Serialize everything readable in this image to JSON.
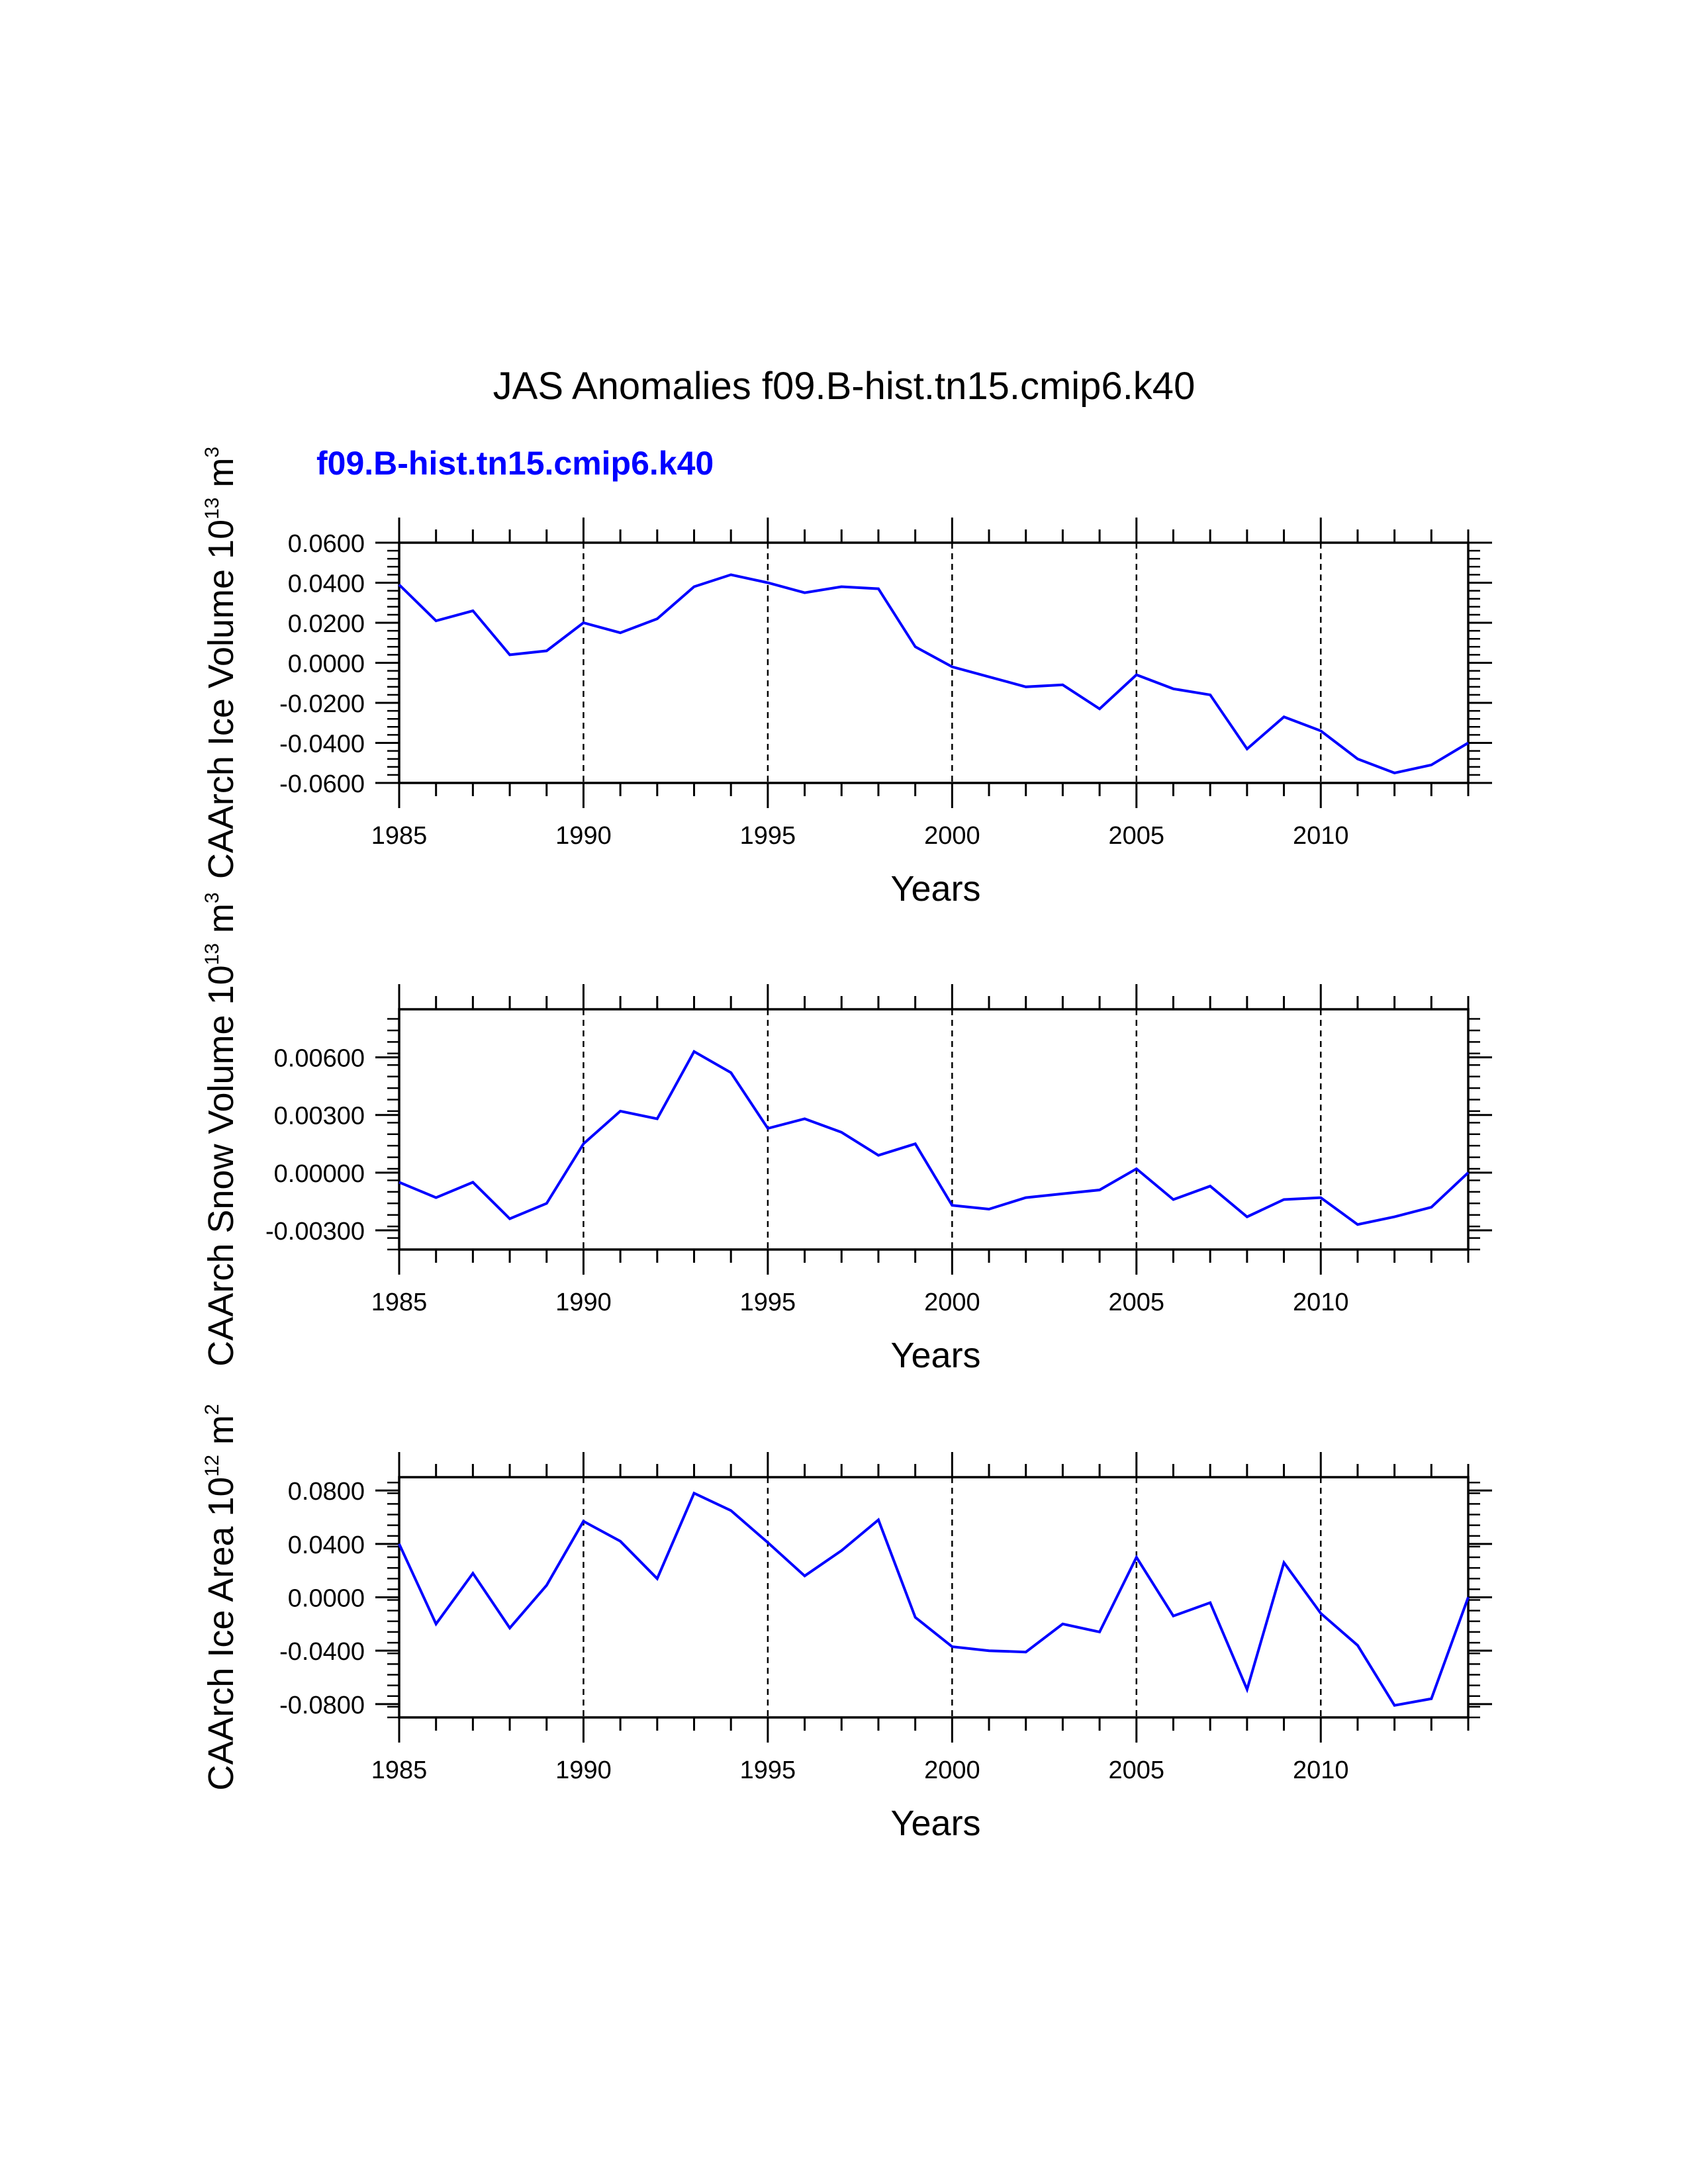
{
  "page": {
    "title": "JAS Anomalies f09.B-hist.tn15.cmip6.k40"
  },
  "legend": {
    "label": "f09.B-hist.tn15.cmip6.k40",
    "color": "#0000ff"
  },
  "colors": {
    "series": "#0000ff",
    "axis": "#000000",
    "grid": "#000000"
  },
  "chart_data": [
    {
      "type": "line",
      "title": "JAS Anomalies f09.B-hist.tn15.cmip6.k40",
      "xlabel": "Years",
      "ylabel": {
        "text": "CAArch Ice Volume 10",
        "exp": "13",
        "unit": " m",
        "unit_exp": "3"
      },
      "xlim": [
        1985,
        2014
      ],
      "ylim": [
        -0.06,
        0.06
      ],
      "xticks": [
        1985,
        1990,
        1995,
        2000,
        2005,
        2010
      ],
      "xtick_labels": [
        "1985",
        "1990",
        "1995",
        "2000",
        "2005",
        "2010"
      ],
      "yticks": [
        -0.06,
        -0.04,
        -0.02,
        0.0,
        0.02,
        0.04,
        0.06
      ],
      "ytick_labels": [
        "-0.0600",
        "-0.0400",
        "-0.0200",
        "0.0000",
        "0.0200",
        "0.0400",
        "0.0600"
      ],
      "grid_x": [
        1990,
        1995,
        2000,
        2005,
        2010
      ],
      "series": [
        {
          "name": "f09.B-hist.tn15.cmip6.k40",
          "x": [
            1985,
            1986,
            1987,
            1988,
            1989,
            1990,
            1991,
            1992,
            1993,
            1994,
            1995,
            1996,
            1997,
            1998,
            1999,
            2000,
            2001,
            2002,
            2003,
            2004,
            2005,
            2006,
            2007,
            2008,
            2009,
            2010,
            2011,
            2012,
            2013,
            2014
          ],
          "values": [
            0.039,
            0.021,
            0.026,
            0.004,
            0.006,
            0.02,
            0.015,
            0.022,
            0.038,
            0.044,
            0.04,
            0.035,
            0.038,
            0.037,
            0.008,
            -0.002,
            -0.007,
            -0.012,
            -0.011,
            -0.023,
            -0.006,
            -0.013,
            -0.016,
            -0.043,
            -0.027,
            -0.034,
            -0.048,
            -0.055,
            -0.051,
            -0.04
          ]
        }
      ]
    },
    {
      "type": "line",
      "xlabel": "Years",
      "ylabel": {
        "text": "CAArch Snow Volume 10",
        "exp": "13",
        "unit": " m",
        "unit_exp": "3"
      },
      "xlim": [
        1985,
        2014
      ],
      "ylim": [
        -0.004,
        0.0085
      ],
      "xticks": [
        1985,
        1990,
        1995,
        2000,
        2005,
        2010
      ],
      "xtick_labels": [
        "1985",
        "1990",
        "1995",
        "2000",
        "2005",
        "2010"
      ],
      "yticks": [
        -0.003,
        0.0,
        0.003,
        0.006
      ],
      "ytick_labels": [
        "-0.00300",
        "0.00000",
        "0.00300",
        "0.00600"
      ],
      "grid_x": [
        1990,
        1995,
        2000,
        2005,
        2010
      ],
      "series": [
        {
          "name": "f09.B-hist.tn15.cmip6.k40",
          "x": [
            1985,
            1986,
            1987,
            1988,
            1989,
            1990,
            1991,
            1992,
            1993,
            1994,
            1995,
            1996,
            1997,
            1998,
            1999,
            2000,
            2001,
            2002,
            2003,
            2004,
            2005,
            2006,
            2007,
            2008,
            2009,
            2010,
            2011,
            2012,
            2013,
            2014
          ],
          "values": [
            -0.0005,
            -0.0013,
            -0.0005,
            -0.0024,
            -0.0016,
            0.0015,
            0.0032,
            0.0028,
            0.0063,
            0.0052,
            0.0023,
            0.0028,
            0.0021,
            0.0009,
            0.0015,
            -0.0017,
            -0.0019,
            -0.0013,
            -0.0011,
            -0.0009,
            0.0002,
            -0.0014,
            -0.0007,
            -0.0023,
            -0.0014,
            -0.0013,
            -0.0027,
            -0.0023,
            -0.0018,
            0.0
          ]
        }
      ]
    },
    {
      "type": "line",
      "xlabel": "Years",
      "ylabel": {
        "text": "CAArch Ice Area 10",
        "exp": "12",
        "unit": " m",
        "unit_exp": "2"
      },
      "xlim": [
        1985,
        2014
      ],
      "ylim": [
        -0.09,
        0.09
      ],
      "xticks": [
        1985,
        1990,
        1995,
        2000,
        2005,
        2010
      ],
      "xtick_labels": [
        "1985",
        "1990",
        "1995",
        "2000",
        "2005",
        "2010"
      ],
      "yticks": [
        -0.08,
        -0.04,
        0.0,
        0.04,
        0.08
      ],
      "ytick_labels": [
        "-0.0800",
        "-0.0400",
        "0.0000",
        "0.0400",
        "0.0800"
      ],
      "grid_x": [
        1990,
        1995,
        2000,
        2005,
        2010
      ],
      "series": [
        {
          "name": "f09.B-hist.tn15.cmip6.k40",
          "x": [
            1985,
            1986,
            1987,
            1988,
            1989,
            1990,
            1991,
            1992,
            1993,
            1994,
            1995,
            1996,
            1997,
            1998,
            1999,
            2000,
            2001,
            2002,
            2003,
            2004,
            2005,
            2006,
            2007,
            2008,
            2009,
            2010,
            2011,
            2012,
            2013,
            2014
          ],
          "values": [
            0.04,
            -0.02,
            0.018,
            -0.023,
            0.009,
            0.057,
            0.042,
            0.014,
            0.078,
            0.065,
            0.041,
            0.016,
            0.035,
            0.058,
            -0.015,
            -0.037,
            -0.04,
            -0.041,
            -0.02,
            -0.026,
            0.03,
            -0.014,
            -0.004,
            -0.069,
            0.026,
            -0.012,
            -0.036,
            -0.081,
            -0.076,
            0.0
          ]
        }
      ]
    }
  ]
}
